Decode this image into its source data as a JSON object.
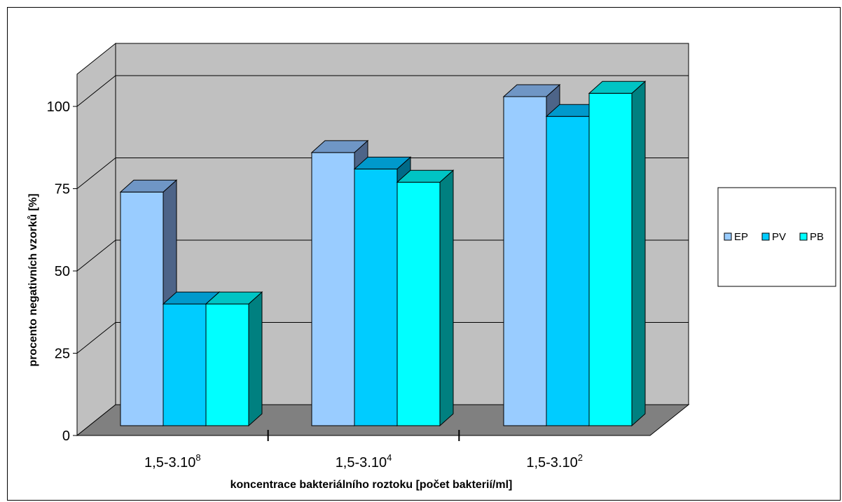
{
  "chart_data": {
    "type": "bar",
    "categories": [
      {
        "base": "1,5-3.10",
        "exp": "8"
      },
      {
        "base": "1,5-3.10",
        "exp": "4"
      },
      {
        "base": "1,5-3.10",
        "exp": "2"
      }
    ],
    "series": [
      {
        "name": "EP",
        "values": [
          71,
          83,
          100
        ]
      },
      {
        "name": "PV",
        "values": [
          37,
          78,
          94
        ]
      },
      {
        "name": "PB",
        "values": [
          37,
          74,
          101
        ]
      }
    ],
    "series_colors": {
      "EP": {
        "front": "#99ccff",
        "top": "#6f96c5",
        "side": "#4d6488"
      },
      "PV": {
        "front": "#00ccff",
        "top": "#0099cc",
        "side": "#006a88"
      },
      "PB": {
        "front": "#00ffff",
        "top": "#00c4c4",
        "side": "#008080"
      }
    },
    "wall_color": "#c0c0c0",
    "floor_color": "#808080",
    "ylabel": "procento negativních vzorků [%]",
    "xlabel": "koncentrace bakteriálního roztoku [počet bakterií/ml]",
    "yticks": [
      0,
      25,
      50,
      75,
      100
    ],
    "ylim": [
      0,
      100
    ],
    "legend_position": "right",
    "grid": true
  }
}
